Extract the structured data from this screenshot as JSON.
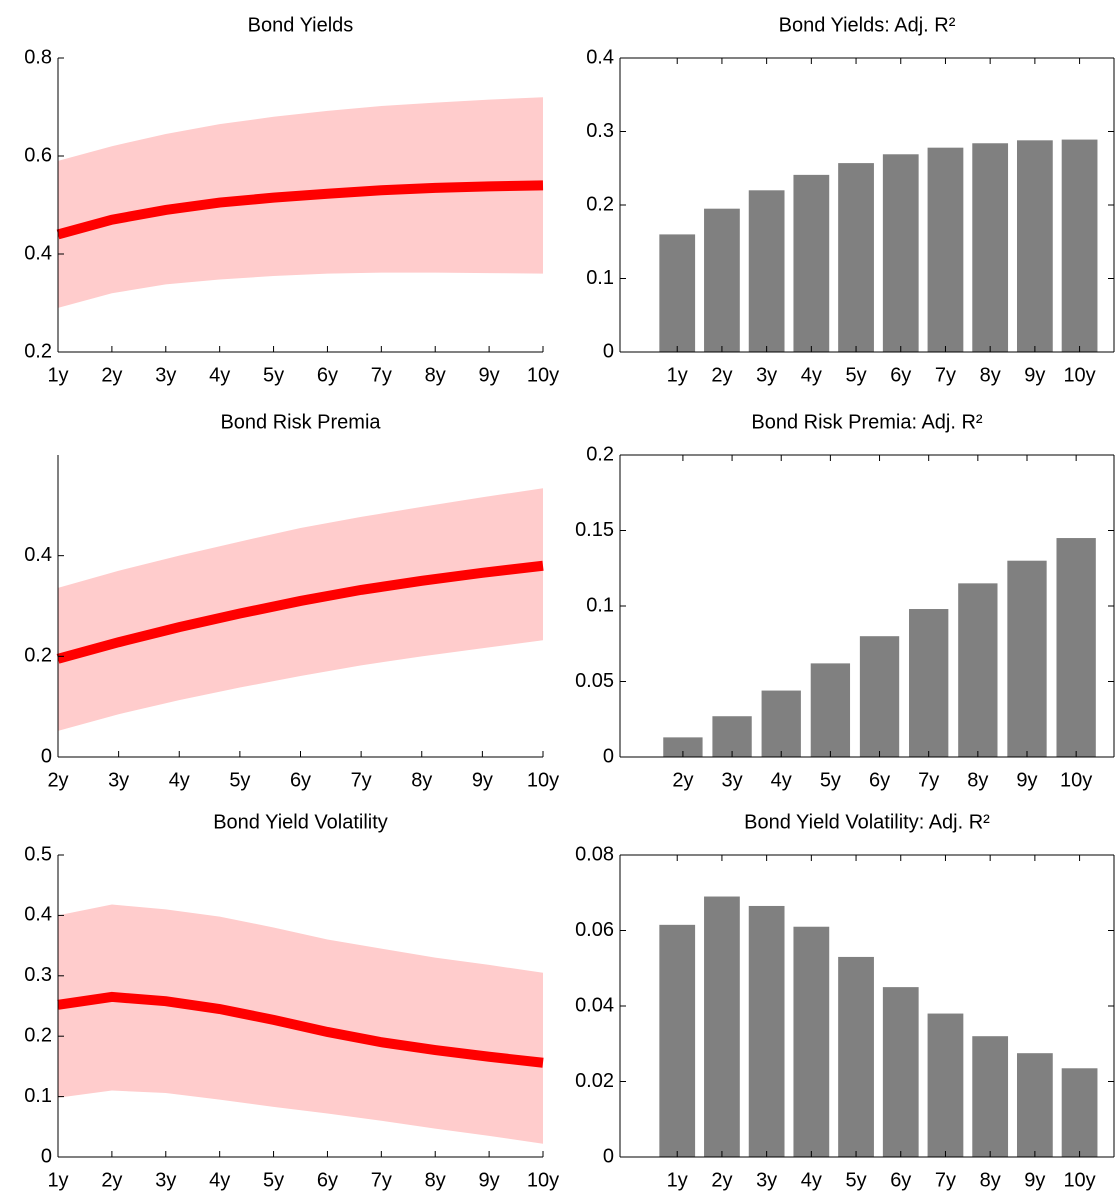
{
  "chart_data": [
    {
      "type": "line",
      "title": "Bond Yields",
      "categories": [
        "1y",
        "2y",
        "3y",
        "4y",
        "5y",
        "6y",
        "7y",
        "8y",
        "9y",
        "10y"
      ],
      "values": [
        0.44,
        0.47,
        0.49,
        0.505,
        0.515,
        0.523,
        0.53,
        0.535,
        0.538,
        0.54
      ],
      "band_upper": [
        0.59,
        0.62,
        0.645,
        0.665,
        0.68,
        0.692,
        0.702,
        0.709,
        0.715,
        0.72
      ],
      "band_lower": [
        0.29,
        0.32,
        0.338,
        0.348,
        0.355,
        0.36,
        0.362,
        0.362,
        0.361,
        0.36
      ],
      "color": "#ff0000",
      "band_color": "#ffcccc",
      "ylim": [
        0.2,
        0.8
      ],
      "yticks": [
        0.2,
        0.4,
        0.6,
        0.8
      ]
    },
    {
      "type": "bar",
      "title": "Bond Yields: Adj. R²",
      "categories": [
        "1y",
        "2y",
        "3y",
        "4y",
        "5y",
        "6y",
        "7y",
        "8y",
        "9y",
        "10y"
      ],
      "values": [
        0.16,
        0.195,
        0.22,
        0.241,
        0.257,
        0.269,
        0.278,
        0.284,
        0.288,
        0.289
      ],
      "color": "#808080",
      "ylim": [
        0,
        0.4
      ],
      "yticks": [
        0,
        0.1,
        0.2,
        0.3,
        0.4
      ]
    },
    {
      "type": "line",
      "title": "Bond Risk Premia",
      "categories": [
        "2y",
        "3y",
        "4y",
        "5y",
        "6y",
        "7y",
        "8y",
        "9y",
        "10y"
      ],
      "values": [
        0.195,
        0.228,
        0.258,
        0.285,
        0.31,
        0.332,
        0.35,
        0.366,
        0.38
      ],
      "band_upper": [
        0.336,
        0.37,
        0.4,
        0.428,
        0.455,
        0.477,
        0.497,
        0.516,
        0.534
      ],
      "band_lower": [
        0.052,
        0.085,
        0.113,
        0.138,
        0.161,
        0.182,
        0.2,
        0.216,
        0.232
      ],
      "color": "#ff0000",
      "band_color": "#ffcccc",
      "ylim": [
        0,
        0.6
      ],
      "yticks": [
        0,
        0.2,
        0.4
      ]
    },
    {
      "type": "bar",
      "title": "Bond Risk Premia: Adj. R²",
      "categories": [
        "2y",
        "3y",
        "4y",
        "5y",
        "6y",
        "7y",
        "8y",
        "9y",
        "10y"
      ],
      "values": [
        0.013,
        0.027,
        0.044,
        0.062,
        0.08,
        0.098,
        0.115,
        0.13,
        0.145
      ],
      "color": "#808080",
      "ylim": [
        0,
        0.2
      ],
      "yticks": [
        0,
        0.05,
        0.1,
        0.15,
        0.2
      ]
    },
    {
      "type": "line",
      "title": "Bond Yield Volatility",
      "categories": [
        "1y",
        "2y",
        "3y",
        "4y",
        "5y",
        "6y",
        "7y",
        "8y",
        "9y",
        "10y"
      ],
      "values": [
        0.252,
        0.265,
        0.258,
        0.245,
        0.227,
        0.207,
        0.19,
        0.177,
        0.166,
        0.156
      ],
      "band_upper": [
        0.4,
        0.418,
        0.41,
        0.398,
        0.38,
        0.36,
        0.345,
        0.33,
        0.318,
        0.305
      ],
      "band_lower": [
        0.098,
        0.11,
        0.106,
        0.095,
        0.083,
        0.072,
        0.06,
        0.047,
        0.035,
        0.022
      ],
      "color": "#ff0000",
      "band_color": "#ffcccc",
      "ylim": [
        0,
        0.5
      ],
      "yticks": [
        0,
        0.1,
        0.2,
        0.3,
        0.4,
        0.5
      ]
    },
    {
      "type": "bar",
      "title": "Bond Yield Volatility: Adj. R²",
      "categories": [
        "1y",
        "2y",
        "3y",
        "4y",
        "5y",
        "6y",
        "7y",
        "8y",
        "9y",
        "10y"
      ],
      "values": [
        0.0615,
        0.069,
        0.0665,
        0.061,
        0.053,
        0.045,
        0.038,
        0.032,
        0.0275,
        0.0235
      ],
      "color": "#808080",
      "ylim": [
        0,
        0.08
      ],
      "yticks": [
        0,
        0.02,
        0.04,
        0.06,
        0.08
      ]
    }
  ]
}
